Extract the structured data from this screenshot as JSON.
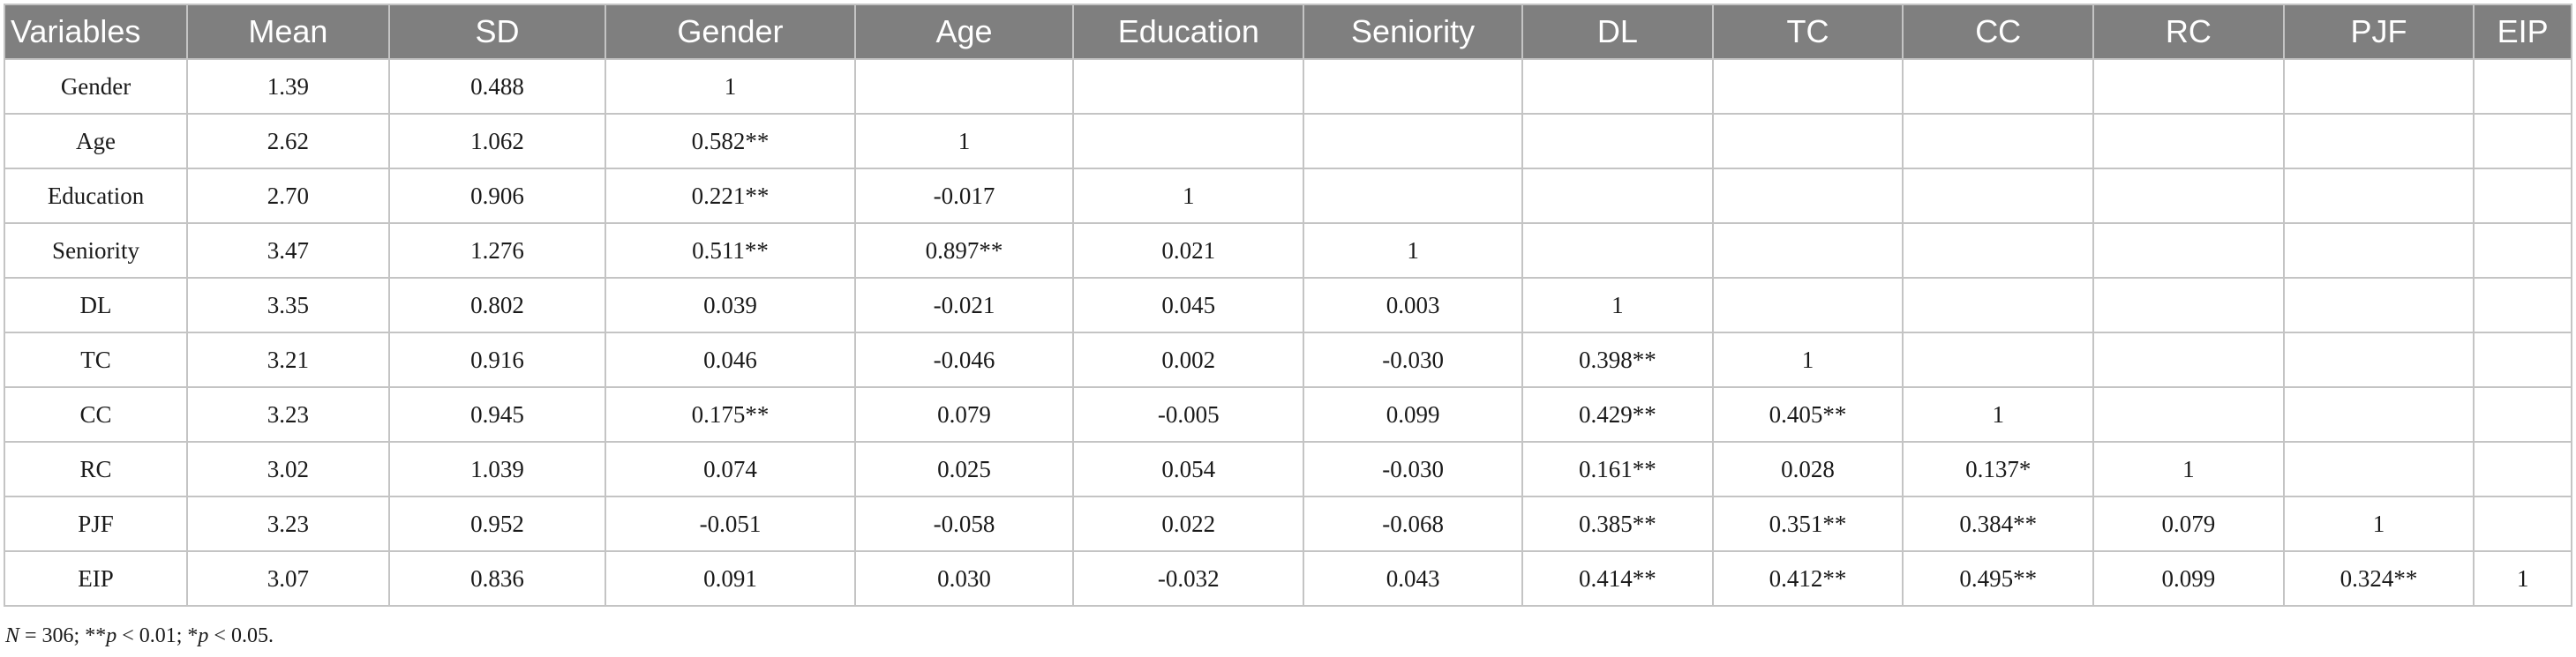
{
  "table": {
    "columns": [
      "Variables",
      "Mean",
      "SD",
      "Gender",
      "Age",
      "Education",
      "Seniority",
      "DL",
      "TC",
      "CC",
      "RC",
      "PJF",
      "EIP"
    ],
    "rows": [
      [
        "Gender",
        "1.39",
        "0.488",
        "1",
        "",
        "",
        "",
        "",
        "",
        "",
        "",
        "",
        ""
      ],
      [
        "Age",
        "2.62",
        "1.062",
        "0.582**",
        "1",
        "",
        "",
        "",
        "",
        "",
        "",
        "",
        ""
      ],
      [
        "Education",
        "2.70",
        "0.906",
        "0.221**",
        "-0.017",
        "1",
        "",
        "",
        "",
        "",
        "",
        "",
        ""
      ],
      [
        "Seniority",
        "3.47",
        "1.276",
        "0.511**",
        "0.897**",
        "0.021",
        "1",
        "",
        "",
        "",
        "",
        "",
        ""
      ],
      [
        "DL",
        "3.35",
        "0.802",
        "0.039",
        "-0.021",
        "0.045",
        "0.003",
        "1",
        "",
        "",
        "",
        "",
        ""
      ],
      [
        "TC",
        "3.21",
        "0.916",
        "0.046",
        "-0.046",
        "0.002",
        "-0.030",
        "0.398**",
        "1",
        "",
        "",
        "",
        ""
      ],
      [
        "CC",
        "3.23",
        "0.945",
        "0.175**",
        "0.079",
        "-0.005",
        "0.099",
        "0.429**",
        "0.405**",
        "1",
        "",
        "",
        ""
      ],
      [
        "RC",
        "3.02",
        "1.039",
        "0.074",
        "0.025",
        "0.054",
        "-0.030",
        "0.161**",
        "0.028",
        "0.137*",
        "1",
        "",
        ""
      ],
      [
        "PJF",
        "3.23",
        "0.952",
        "-0.051",
        "-0.058",
        "0.022",
        "-0.068",
        "0.385**",
        "0.351**",
        "0.384**",
        "0.079",
        "1",
        ""
      ],
      [
        "EIP",
        "3.07",
        "0.836",
        "0.091",
        "0.030",
        "-0.032",
        "0.043",
        "0.414**",
        "0.412**",
        "0.495**",
        "0.099",
        "0.324**",
        "1"
      ]
    ]
  },
  "footnote": {
    "n_label": "N",
    "n_value": " = 306; **",
    "p1_label": "p",
    "p1_value": " < 0.01; *",
    "p2_label": "p",
    "p2_value": " < 0.05."
  }
}
